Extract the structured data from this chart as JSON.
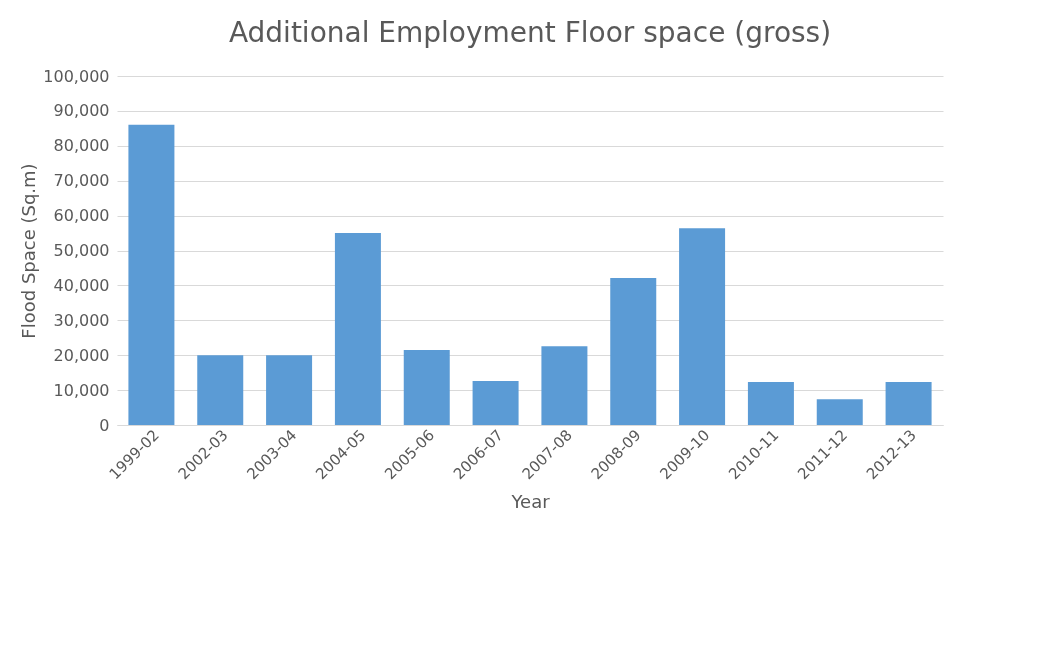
{
  "chart_data": {
    "type": "bar",
    "title": "Additional Employment Floor space (gross)",
    "xlabel": "Year",
    "ylabel": "Flood Space (Sq.m)",
    "categories": [
      "1999-02",
      "2002-03",
      "2003-04",
      "2004-05",
      "2005-06",
      "2006-07",
      "2007-08",
      "2008-09",
      "2009-10",
      "2010-11",
      "2011-12",
      "2012-13"
    ],
    "values": [
      86000,
      20000,
      20000,
      55000,
      21500,
      12600,
      22600,
      42100,
      56400,
      12300,
      7400,
      12300
    ],
    "color": "#5b9bd5",
    "ylim": [
      0,
      100000
    ],
    "yticks": [
      {
        "value": 0,
        "label": "0"
      },
      {
        "value": 10000,
        "label": "10,000"
      },
      {
        "value": 20000,
        "label": "20,000"
      },
      {
        "value": 30000,
        "label": "30,000"
      },
      {
        "value": 40000,
        "label": "40,000"
      },
      {
        "value": 50000,
        "label": "50,000"
      },
      {
        "value": 60000,
        "label": "60,000"
      },
      {
        "value": 70000,
        "label": "70,000"
      },
      {
        "value": 80000,
        "label": "80,000"
      },
      {
        "value": 90000,
        "label": "90,000"
      },
      {
        "value": 100000,
        "label": "100,000"
      }
    ],
    "grid": "y"
  }
}
